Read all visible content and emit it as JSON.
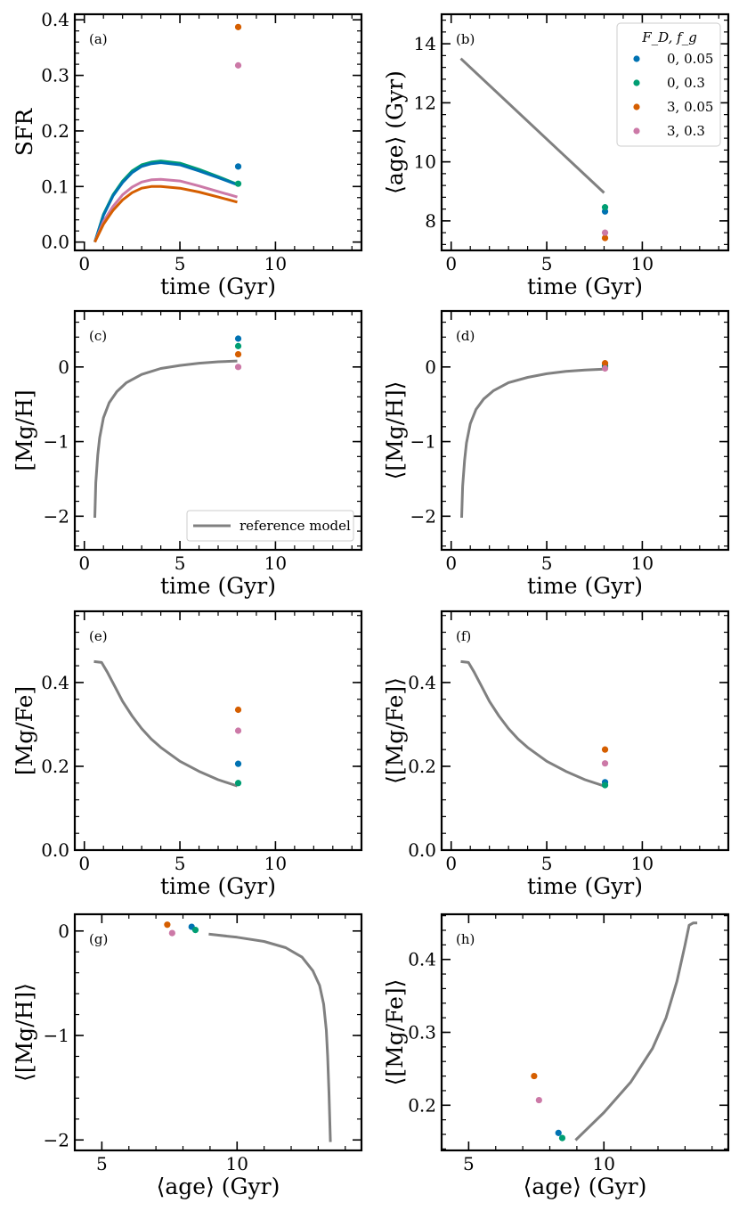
{
  "figure": {
    "series_colors": {
      "0, 0.05": "#0072b2",
      "0, 0.3": "#009e73",
      "3, 0.05": "#d55e00",
      "3, 0.3": "#cc79a7",
      "reference": "#808080"
    },
    "legend": {
      "title": "F_D, f_g",
      "entries": [
        "0, 0.05",
        "0, 0.3",
        "3, 0.05",
        "3, 0.3"
      ]
    },
    "reference_legend": "reference model"
  },
  "chart_data": [
    {
      "id": "a",
      "panel_label": "(a)",
      "type": "line",
      "xlabel": "time (Gyr)",
      "ylabel": "SFR",
      "xlim": [
        -0.5,
        14.5
      ],
      "ylim": [
        -0.015,
        0.41
      ],
      "xticks": [
        0,
        5,
        10
      ],
      "xtick_labels": [
        "0",
        "5",
        "10"
      ],
      "yticks": [
        0,
        0.1,
        0.2,
        0.3,
        0.4
      ],
      "ytick_labels": [
        "0.0",
        "0.1",
        "0.2",
        "0.3",
        "0.4"
      ],
      "lines": [
        {
          "name": "0, 0.3",
          "x": [
            0.55,
            1,
            1.5,
            2,
            2.5,
            3,
            3.5,
            4,
            5,
            6,
            7,
            8
          ],
          "y": [
            0.0,
            0.05,
            0.085,
            0.11,
            0.128,
            0.139,
            0.144,
            0.146,
            0.142,
            0.131,
            0.118,
            0.104
          ]
        },
        {
          "name": "0, 0.05",
          "x": [
            0.55,
            1,
            1.5,
            2,
            2.5,
            3,
            3.5,
            4,
            5,
            6,
            7,
            8
          ],
          "y": [
            0.0,
            0.048,
            0.083,
            0.107,
            0.125,
            0.136,
            0.141,
            0.143,
            0.139,
            0.128,
            0.116,
            0.103
          ]
        },
        {
          "name": "3, 0.3",
          "x": [
            0.55,
            1,
            1.5,
            2,
            2.5,
            3,
            3.5,
            4,
            5,
            6,
            7,
            8
          ],
          "y": [
            0.0,
            0.037,
            0.064,
            0.085,
            0.099,
            0.108,
            0.112,
            0.113,
            0.11,
            0.101,
            0.091,
            0.081
          ]
        },
        {
          "name": "3, 0.05",
          "x": [
            0.55,
            1,
            1.5,
            2,
            2.5,
            3,
            3.5,
            4,
            5,
            6,
            7,
            8
          ],
          "y": [
            0.0,
            0.032,
            0.057,
            0.076,
            0.089,
            0.097,
            0.1,
            0.1,
            0.097,
            0.09,
            0.081,
            0.072
          ]
        }
      ],
      "points": [
        {
          "name": "0, 0.05",
          "x": 8.05,
          "y": 0.136
        },
        {
          "name": "0, 0.3",
          "x": 8.05,
          "y": 0.105
        },
        {
          "name": "3, 0.05",
          "x": 8.05,
          "y": 0.387
        },
        {
          "name": "3, 0.3",
          "x": 8.05,
          "y": 0.318
        }
      ]
    },
    {
      "id": "b",
      "panel_label": "(b)",
      "type": "line",
      "xlabel": "time (Gyr)",
      "ylabel": "⟨age⟩ (Gyr)",
      "xlim": [
        -0.5,
        14.5
      ],
      "ylim": [
        7.0,
        15.0
      ],
      "xticks": [
        0,
        5,
        10
      ],
      "xtick_labels": [
        "0",
        "5",
        "10"
      ],
      "yticks": [
        8,
        10,
        12,
        14
      ],
      "ytick_labels": [
        "8",
        "10",
        "12",
        "14"
      ],
      "lines": [
        {
          "name": "reference",
          "x": [
            0.5,
            8.0
          ],
          "y": [
            13.5,
            8.95
          ]
        }
      ],
      "points": [
        {
          "name": "0, 0.05",
          "x": 8.05,
          "y": 8.32
        },
        {
          "name": "0, 0.3",
          "x": 8.05,
          "y": 8.46
        },
        {
          "name": "3, 0.05",
          "x": 8.05,
          "y": 7.42
        },
        {
          "name": "3, 0.3",
          "x": 8.05,
          "y": 7.6
        }
      ]
    },
    {
      "id": "c",
      "panel_label": "(c)",
      "type": "line",
      "xlabel": "time (Gyr)",
      "ylabel": "[Mg/H]",
      "xlim": [
        -0.5,
        14.5
      ],
      "ylim": [
        -2.45,
        0.75
      ],
      "xticks": [
        0,
        5,
        10
      ],
      "xtick_labels": [
        "0",
        "5",
        "10"
      ],
      "yticks": [
        -2,
        -1,
        0
      ],
      "ytick_labels": [
        "−2",
        "−1",
        "0"
      ],
      "lines": [
        {
          "name": "reference",
          "x": [
            0.55,
            0.6,
            0.7,
            0.8,
            1.0,
            1.3,
            1.7,
            2.2,
            3.0,
            4.0,
            5.0,
            6.0,
            7.0,
            8.0
          ],
          "y": [
            -2.02,
            -1.55,
            -1.18,
            -0.95,
            -0.68,
            -0.48,
            -0.33,
            -0.21,
            -0.1,
            -0.02,
            0.02,
            0.05,
            0.07,
            0.08
          ]
        }
      ],
      "points": [
        {
          "name": "0, 0.05",
          "x": 8.05,
          "y": 0.38
        },
        {
          "name": "0, 0.3",
          "x": 8.05,
          "y": 0.28
        },
        {
          "name": "3, 0.05",
          "x": 8.05,
          "y": 0.17
        },
        {
          "name": "3, 0.3",
          "x": 8.05,
          "y": 0.0
        }
      ],
      "legend": {
        "placement": "lower-right",
        "entry": "reference model"
      }
    },
    {
      "id": "d",
      "panel_label": "(d)",
      "type": "line",
      "xlabel": "time (Gyr)",
      "ylabel": "⟨[Mg/H]⟩",
      "xlim": [
        -0.5,
        14.5
      ],
      "ylim": [
        -2.45,
        0.75
      ],
      "xticks": [
        0,
        5,
        10
      ],
      "xtick_labels": [
        "0",
        "5",
        "10"
      ],
      "yticks": [
        -2,
        -1,
        0
      ],
      "ytick_labels": [
        "−2",
        "−1",
        "0"
      ],
      "lines": [
        {
          "name": "reference",
          "x": [
            0.55,
            0.6,
            0.7,
            0.8,
            1.0,
            1.3,
            1.7,
            2.2,
            3.0,
            4.0,
            5.0,
            6.0,
            7.0,
            8.0
          ],
          "y": [
            -2.02,
            -1.6,
            -1.25,
            -1.02,
            -0.76,
            -0.57,
            -0.43,
            -0.32,
            -0.21,
            -0.14,
            -0.09,
            -0.06,
            -0.04,
            -0.03
          ]
        }
      ],
      "points": [
        {
          "name": "0, 0.05",
          "x": 8.05,
          "y": 0.02
        },
        {
          "name": "0, 0.3",
          "x": 8.05,
          "y": 0.0
        },
        {
          "name": "3, 0.05",
          "x": 8.05,
          "y": 0.05
        },
        {
          "name": "3, 0.3",
          "x": 8.05,
          "y": -0.02
        }
      ]
    },
    {
      "id": "e",
      "panel_label": "(e)",
      "type": "line",
      "xlabel": "time (Gyr)",
      "ylabel": "[Mg/Fe]",
      "xlim": [
        -0.5,
        14.5
      ],
      "ylim": [
        0.0,
        0.57
      ],
      "xticks": [
        0,
        5,
        10
      ],
      "xtick_labels": [
        "0",
        "5",
        "10"
      ],
      "yticks": [
        0.0,
        0.2,
        0.4
      ],
      "ytick_labels": [
        "0.0",
        "0.2",
        "0.4"
      ],
      "lines": [
        {
          "name": "reference",
          "x": [
            0.5,
            0.9,
            1.2,
            1.6,
            2.0,
            2.5,
            3.0,
            3.5,
            4.0,
            5.0,
            6.0,
            7.0,
            8.0
          ],
          "y": [
            0.45,
            0.448,
            0.425,
            0.39,
            0.355,
            0.32,
            0.29,
            0.265,
            0.245,
            0.212,
            0.188,
            0.168,
            0.153
          ]
        }
      ],
      "points": [
        {
          "name": "0, 0.05",
          "x": 8.05,
          "y": 0.206
        },
        {
          "name": "0, 0.3",
          "x": 8.05,
          "y": 0.16
        },
        {
          "name": "3, 0.05",
          "x": 8.05,
          "y": 0.335
        },
        {
          "name": "3, 0.3",
          "x": 8.05,
          "y": 0.285
        }
      ]
    },
    {
      "id": "f",
      "panel_label": "(f)",
      "type": "line",
      "xlabel": "time (Gyr)",
      "ylabel": "⟨[Mg/Fe]⟩",
      "xlim": [
        -0.5,
        14.5
      ],
      "ylim": [
        0.0,
        0.57
      ],
      "xticks": [
        0,
        5,
        10
      ],
      "xtick_labels": [
        "0",
        "5",
        "10"
      ],
      "yticks": [
        0.0,
        0.2,
        0.4
      ],
      "ytick_labels": [
        "0.0",
        "0.2",
        "0.4"
      ],
      "lines": [
        {
          "name": "reference",
          "x": [
            0.5,
            0.9,
            1.2,
            1.6,
            2.0,
            2.5,
            3.0,
            3.5,
            4.0,
            5.0,
            6.0,
            7.0,
            8.0
          ],
          "y": [
            0.45,
            0.448,
            0.425,
            0.39,
            0.355,
            0.32,
            0.29,
            0.265,
            0.245,
            0.212,
            0.188,
            0.168,
            0.153
          ]
        }
      ],
      "points": [
        {
          "name": "0, 0.05",
          "x": 8.05,
          "y": 0.162
        },
        {
          "name": "0, 0.3",
          "x": 8.05,
          "y": 0.155
        },
        {
          "name": "3, 0.05",
          "x": 8.05,
          "y": 0.24
        },
        {
          "name": "3, 0.3",
          "x": 8.05,
          "y": 0.207
        }
      ]
    },
    {
      "id": "g",
      "panel_label": "(g)",
      "type": "line",
      "xlabel": "⟨age⟩ (Gyr)",
      "ylabel": "⟨[Mg/H]⟩",
      "xlim": [
        4.0,
        14.6
      ],
      "ylim": [
        -2.1,
        0.16
      ],
      "xticks": [
        5,
        10
      ],
      "xtick_labels": [
        "5",
        "10"
      ],
      "yticks": [
        -2,
        -1,
        0
      ],
      "ytick_labels": [
        "−2",
        "−1",
        "0"
      ],
      "lines": [
        {
          "name": "reference",
          "x": [
            8.95,
            10.0,
            11.0,
            11.8,
            12.4,
            12.8,
            13.05,
            13.2,
            13.3,
            13.35,
            13.4,
            13.45
          ],
          "y": [
            -0.03,
            -0.06,
            -0.1,
            -0.16,
            -0.25,
            -0.38,
            -0.52,
            -0.7,
            -0.95,
            -1.2,
            -1.55,
            -2.02
          ]
        }
      ],
      "points": [
        {
          "name": "0, 0.05",
          "x": 8.32,
          "y": 0.04
        },
        {
          "name": "0, 0.3",
          "x": 8.46,
          "y": 0.01
        },
        {
          "name": "3, 0.05",
          "x": 7.42,
          "y": 0.06
        },
        {
          "name": "3, 0.3",
          "x": 7.6,
          "y": -0.02
        }
      ]
    },
    {
      "id": "h",
      "panel_label": "(h)",
      "type": "line",
      "xlabel": "⟨age⟩ (Gyr)",
      "ylabel": "⟨[Mg/Fe]⟩",
      "xlim": [
        4.0,
        14.6
      ],
      "ylim": [
        0.138,
        0.462
      ],
      "xticks": [
        5,
        10
      ],
      "xtick_labels": [
        "5",
        "10"
      ],
      "yticks": [
        0.2,
        0.3,
        0.4
      ],
      "ytick_labels": [
        "0.2",
        "0.3",
        "0.4"
      ],
      "lines": [
        {
          "name": "reference",
          "x": [
            8.95,
            10.0,
            11.0,
            11.8,
            12.3,
            12.7,
            13.0,
            13.15,
            13.3,
            13.45
          ],
          "y": [
            0.152,
            0.19,
            0.232,
            0.278,
            0.32,
            0.37,
            0.42,
            0.447,
            0.45,
            0.45
          ]
        }
      ],
      "points": [
        {
          "name": "0, 0.05",
          "x": 8.32,
          "y": 0.162
        },
        {
          "name": "0, 0.3",
          "x": 8.46,
          "y": 0.155
        },
        {
          "name": "3, 0.05",
          "x": 7.42,
          "y": 0.24
        },
        {
          "name": "3, 0.3",
          "x": 7.6,
          "y": 0.207
        }
      ]
    }
  ]
}
